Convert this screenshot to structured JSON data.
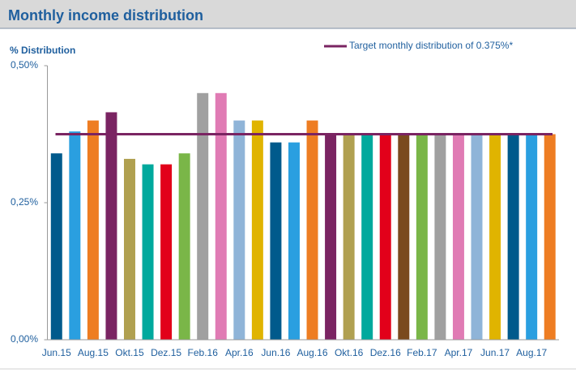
{
  "chart_data": {
    "type": "bar",
    "title": "Monthly income distribution",
    "y_label": "% Distribution",
    "categories": [
      "Jun.15",
      null,
      "Aug.15",
      null,
      "Okt.15",
      null,
      "Dez.15",
      null,
      "Feb.16",
      null,
      "Apr.16",
      null,
      "Jun.16",
      null,
      "Aug.16",
      null,
      "Okt.16",
      null,
      "Dez.16",
      null,
      "Feb.17",
      null,
      "Apr.17",
      null,
      "Jun.17",
      null,
      "Aug.17",
      null
    ],
    "values": [
      0.34,
      0.38,
      0.4,
      0.415,
      0.33,
      0.32,
      0.32,
      0.34,
      0.45,
      0.45,
      0.4,
      0.4,
      0.36,
      0.36,
      0.4,
      0.375,
      0.375,
      0.375,
      0.375,
      0.375,
      0.375,
      0.375,
      0.375,
      0.375,
      0.375,
      0.375,
      0.375,
      0.375
    ],
    "colors": [
      "#005a8c",
      "#2a9fe0",
      "#ee7d22",
      "#7a2462",
      "#b0a050",
      "#00a99d",
      "#e2001a",
      "#7ab648",
      "#a0a0a0",
      "#e07bb4",
      "#8fb4d8",
      "#e0b400",
      "#005a8c",
      "#2a9fe0",
      "#ee7d22",
      "#7a2462",
      "#b0a050",
      "#00a99d",
      "#e2001a",
      "#7a4a1e",
      "#7ab648",
      "#a0a0a0",
      "#e07bb4",
      "#8fb4d8",
      "#e0b400",
      "#005a8c",
      "#2a9fe0",
      "#ee7d22"
    ],
    "target": {
      "label": "Target monthly distribution of 0.375%*",
      "value": 0.375,
      "color": "#7a2462"
    },
    "ylim": [
      0,
      0.5
    ],
    "yticks": [
      {
        "value": 0,
        "label": "0,00%"
      },
      {
        "value": 0.25,
        "label": "0,25%"
      },
      {
        "value": 0.5,
        "label": "0,50%"
      }
    ]
  }
}
